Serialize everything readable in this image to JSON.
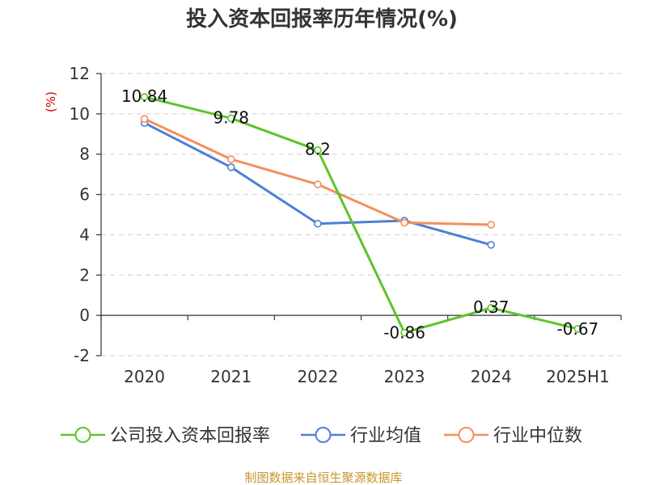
{
  "chart_data": {
    "type": "line",
    "title": "投入资本回报率历年情况(%)",
    "ylabel": "(%)",
    "categories": [
      "2020",
      "2021",
      "2022",
      "2023",
      "2024",
      "2025H1"
    ],
    "ylim": [
      -2,
      12
    ],
    "yticks": [
      12,
      10,
      8,
      6,
      4,
      2,
      0,
      -2
    ],
    "grid": true,
    "legend_position": "bottom",
    "series": [
      {
        "name": "公司投入资本回报率",
        "color": "#5ec42a",
        "values": [
          10.84,
          9.78,
          8.2,
          -0.86,
          0.37,
          -0.67
        ],
        "labels": [
          "10.84",
          "9.78",
          "8.2",
          "-0.86",
          "0.37",
          "-0.67"
        ]
      },
      {
        "name": "行业均值",
        "color": "#4f7fd6",
        "values": [
          9.55,
          7.35,
          4.55,
          4.7,
          3.5,
          null
        ]
      },
      {
        "name": "行业中位数",
        "color": "#f3905a",
        "values": [
          9.75,
          7.75,
          6.5,
          4.6,
          4.5,
          null
        ]
      }
    ],
    "source": "制图数据来自恒生聚源数据库"
  }
}
